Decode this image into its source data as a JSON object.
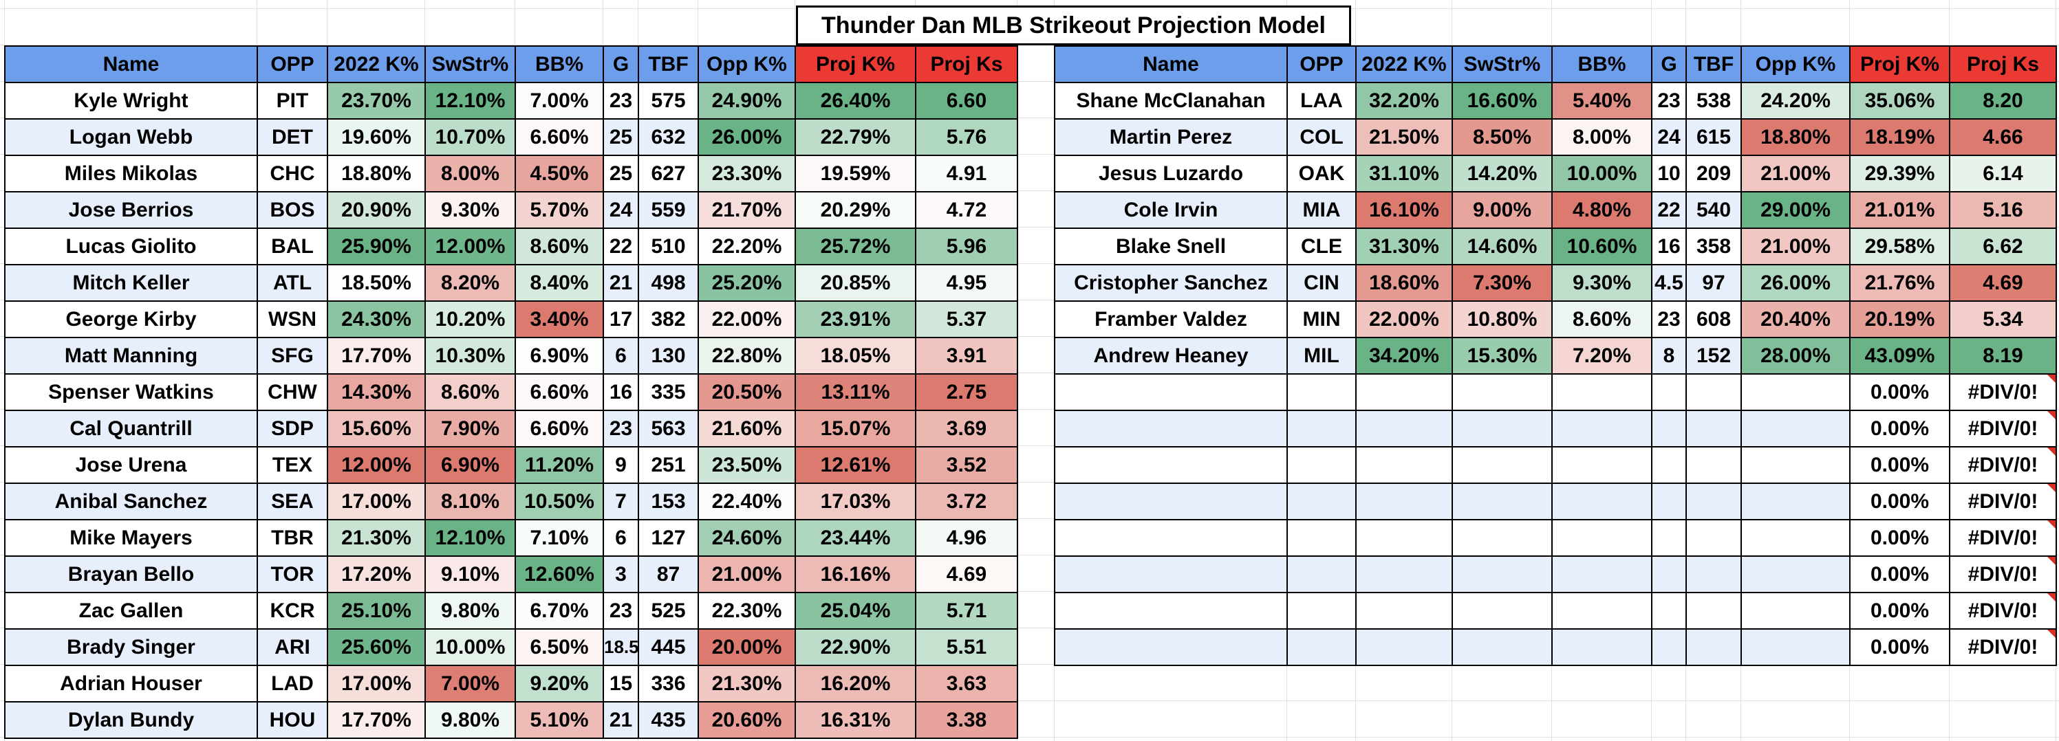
{
  "title": "Thunder Dan MLB Strikeout Projection Model",
  "colors": {
    "header_blue": "#6d9eeb",
    "header_red": "#ea3a33",
    "band_light": "#e8effc",
    "scale_low": "#dc7a6f",
    "scale_mid": "#ffffff",
    "scale_high": "#6ab387"
  },
  "columns": [
    "Name",
    "OPP",
    "2022 K%",
    "SwStr%",
    "BB%",
    "G",
    "TBF",
    "Opp K%",
    "Proj K%",
    "Proj Ks"
  ],
  "left_rows": [
    [
      "Kyle Wright",
      "PIT",
      "23.70%",
      "12.10%",
      "7.00%",
      "23",
      "575",
      "24.90%",
      "26.40%",
      "6.60"
    ],
    [
      "Logan Webb",
      "DET",
      "19.60%",
      "10.70%",
      "6.60%",
      "25",
      "632",
      "26.00%",
      "22.79%",
      "5.76"
    ],
    [
      "Miles Mikolas",
      "CHC",
      "18.80%",
      "8.00%",
      "4.50%",
      "25",
      "627",
      "23.30%",
      "19.59%",
      "4.91"
    ],
    [
      "Jose Berrios",
      "BOS",
      "20.90%",
      "9.30%",
      "5.70%",
      "24",
      "559",
      "21.70%",
      "20.29%",
      "4.72"
    ],
    [
      "Lucas Giolito",
      "BAL",
      "25.90%",
      "12.00%",
      "8.60%",
      "22",
      "510",
      "22.20%",
      "25.72%",
      "5.96"
    ],
    [
      "Mitch Keller",
      "ATL",
      "18.50%",
      "8.20%",
      "8.40%",
      "21",
      "498",
      "25.20%",
      "20.85%",
      "4.95"
    ],
    [
      "George Kirby",
      "WSN",
      "24.30%",
      "10.20%",
      "3.40%",
      "17",
      "382",
      "22.00%",
      "23.91%",
      "5.37"
    ],
    [
      "Matt Manning",
      "SFG",
      "17.70%",
      "10.30%",
      "6.90%",
      "6",
      "130",
      "22.80%",
      "18.05%",
      "3.91"
    ],
    [
      "Spenser Watkins",
      "CHW",
      "14.30%",
      "8.60%",
      "6.60%",
      "16",
      "335",
      "20.50%",
      "13.11%",
      "2.75"
    ],
    [
      "Cal Quantrill",
      "SDP",
      "15.60%",
      "7.90%",
      "6.60%",
      "23",
      "563",
      "21.60%",
      "15.07%",
      "3.69"
    ],
    [
      "Jose Urena",
      "TEX",
      "12.00%",
      "6.90%",
      "11.20%",
      "9",
      "251",
      "23.50%",
      "12.61%",
      "3.52"
    ],
    [
      "Anibal Sanchez",
      "SEA",
      "17.00%",
      "8.10%",
      "10.50%",
      "7",
      "153",
      "22.40%",
      "17.03%",
      "3.72"
    ],
    [
      "Mike Mayers",
      "TBR",
      "21.30%",
      "12.10%",
      "7.10%",
      "6",
      "127",
      "24.60%",
      "23.44%",
      "4.96"
    ],
    [
      "Brayan Bello",
      "TOR",
      "17.20%",
      "9.10%",
      "12.60%",
      "3",
      "87",
      "21.00%",
      "16.16%",
      "4.69"
    ],
    [
      "Zac Gallen",
      "KCR",
      "25.10%",
      "9.80%",
      "6.70%",
      "23",
      "525",
      "22.30%",
      "25.04%",
      "5.71"
    ],
    [
      "Brady Singer",
      "ARI",
      "25.60%",
      "10.00%",
      "6.50%",
      "18.5",
      "445",
      "20.00%",
      "22.90%",
      "5.51"
    ],
    [
      "Adrian Houser",
      "LAD",
      "17.00%",
      "7.00%",
      "9.20%",
      "15",
      "336",
      "21.30%",
      "16.20%",
      "3.63"
    ],
    [
      "Dylan Bundy",
      "HOU",
      "17.70%",
      "9.80%",
      "5.10%",
      "21",
      "435",
      "20.60%",
      "16.31%",
      "3.38"
    ]
  ],
  "right_rows": [
    [
      "Shane McClanahan",
      "LAA",
      "32.20%",
      "16.60%",
      "5.40%",
      "23",
      "538",
      "24.20%",
      "35.06%",
      "8.20"
    ],
    [
      "Martin Perez",
      "COL",
      "21.50%",
      "8.50%",
      "8.00%",
      "24",
      "615",
      "18.80%",
      "18.19%",
      "4.66"
    ],
    [
      "Jesus Luzardo",
      "OAK",
      "31.10%",
      "14.20%",
      "10.00%",
      "10",
      "209",
      "21.00%",
      "29.39%",
      "6.14"
    ],
    [
      "Cole Irvin",
      "MIA",
      "16.10%",
      "9.00%",
      "4.80%",
      "22",
      "540",
      "29.00%",
      "21.01%",
      "5.16"
    ],
    [
      "Blake Snell",
      "CLE",
      "31.30%",
      "14.60%",
      "10.60%",
      "16",
      "358",
      "21.00%",
      "29.58%",
      "6.62"
    ],
    [
      "Cristopher Sanchez",
      "CIN",
      "18.60%",
      "7.30%",
      "9.30%",
      "4.5",
      "97",
      "26.00%",
      "21.76%",
      "4.69"
    ],
    [
      "Framber Valdez",
      "MIN",
      "22.00%",
      "10.80%",
      "8.60%",
      "23",
      "608",
      "20.40%",
      "20.19%",
      "5.34"
    ],
    [
      "Andrew Heaney",
      "MIL",
      "34.20%",
      "15.30%",
      "7.20%",
      "8",
      "152",
      "28.00%",
      "43.09%",
      "8.19"
    ],
    [
      "",
      "",
      "",
      "",
      "",
      "",
      "",
      "",
      "0.00%",
      "#DIV/0!"
    ],
    [
      "",
      "",
      "",
      "",
      "",
      "",
      "",
      "",
      "0.00%",
      "#DIV/0!"
    ],
    [
      "",
      "",
      "",
      "",
      "",
      "",
      "",
      "",
      "0.00%",
      "#DIV/0!"
    ],
    [
      "",
      "",
      "",
      "",
      "",
      "",
      "",
      "",
      "0.00%",
      "#DIV/0!"
    ],
    [
      "",
      "",
      "",
      "",
      "",
      "",
      "",
      "",
      "0.00%",
      "#DIV/0!"
    ],
    [
      "",
      "",
      "",
      "",
      "",
      "",
      "",
      "",
      "0.00%",
      "#DIV/0!"
    ],
    [
      "",
      "",
      "",
      "",
      "",
      "",
      "",
      "",
      "0.00%",
      "#DIV/0!"
    ],
    [
      "",
      "",
      "",
      "",
      "",
      "",
      "",
      "",
      "0.00%",
      "#DIV/0!"
    ]
  ]
}
